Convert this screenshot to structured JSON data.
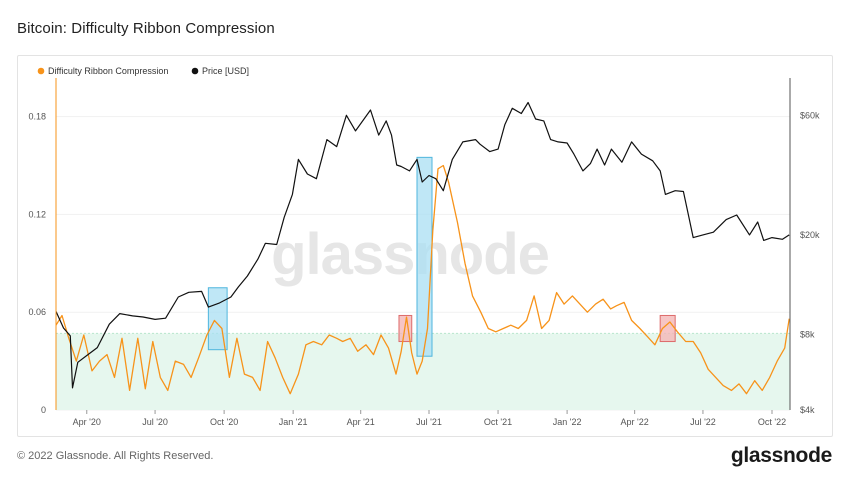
{
  "header": {
    "title": "Bitcoin: Difficulty Ribbon Compression"
  },
  "footer": {
    "copyright": "© 2022 Glassnode. All Rights Reserved.",
    "logo": "glassnode"
  },
  "watermark": "glassnode",
  "colors": {
    "ribbon": "#f7931a",
    "price": "#111111",
    "zone_fill": "#e6f7ee",
    "zone_border": "#b9e6cd",
    "blue_box_fill": "#a9dff3",
    "blue_box_stroke": "#4fb6dd",
    "red_box_fill": "#f4b7b7",
    "red_box_stroke": "#dd6b6b"
  },
  "chart_data": {
    "type": "line",
    "legend": {
      "placement": "top-left",
      "entries": [
        "Difficulty Ribbon Compression",
        "Price [USD]"
      ]
    },
    "x_axis": {
      "range": [
        "2020-02-20",
        "2022-10-25"
      ],
      "ticks": [
        {
          "date": "2020-04-01",
          "label": "Apr '20"
        },
        {
          "date": "2020-07-01",
          "label": "Jul '20"
        },
        {
          "date": "2020-10-01",
          "label": "Oct '20"
        },
        {
          "date": "2021-01-01",
          "label": "Jan '21"
        },
        {
          "date": "2021-04-01",
          "label": "Apr '21"
        },
        {
          "date": "2021-07-01",
          "label": "Jul '21"
        },
        {
          "date": "2021-10-01",
          "label": "Oct '21"
        },
        {
          "date": "2022-01-01",
          "label": "Jan '22"
        },
        {
          "date": "2022-04-01",
          "label": "Apr '22"
        },
        {
          "date": "2022-07-01",
          "label": "Jul '22"
        },
        {
          "date": "2022-10-01",
          "label": "Oct '22"
        }
      ]
    },
    "y_left": {
      "range": [
        0,
        0.2
      ],
      "ticks": [
        {
          "value": 0,
          "label": "0"
        },
        {
          "value": 0.06,
          "label": "0.06"
        },
        {
          "value": 0.12,
          "label": "0.12"
        },
        {
          "value": 0.18,
          "label": "0.18"
        }
      ]
    },
    "y_right": {
      "scale": "log",
      "range": [
        4000,
        80000
      ],
      "ticks": [
        {
          "value": 4000,
          "label": "$4k"
        },
        {
          "value": 8000,
          "label": "$8k"
        },
        {
          "value": 20000,
          "label": "$20k"
        },
        {
          "value": 60000,
          "label": "$60k"
        }
      ]
    },
    "threshold_zone": [
      0,
      0.047
    ],
    "highlights": [
      {
        "kind": "blue",
        "x": [
          "2020-09-10",
          "2020-10-05"
        ],
        "y": [
          0.037,
          0.075
        ]
      },
      {
        "kind": "blue",
        "x": [
          "2021-06-15",
          "2021-07-05"
        ],
        "y": [
          0.033,
          0.155
        ]
      },
      {
        "kind": "red",
        "x": [
          "2021-05-22",
          "2021-06-08"
        ],
        "y": [
          0.042,
          0.058
        ]
      },
      {
        "kind": "red",
        "x": [
          "2022-05-05",
          "2022-05-25"
        ],
        "y": [
          0.042,
          0.058
        ]
      }
    ],
    "series": [
      {
        "name": "Difficulty Ribbon Compression",
        "axis": "left",
        "x": [
          "2020-02-20",
          "2020-02-28",
          "2020-03-08",
          "2020-03-18",
          "2020-03-28",
          "2020-04-08",
          "2020-04-18",
          "2020-04-28",
          "2020-05-08",
          "2020-05-18",
          "2020-05-28",
          "2020-06-08",
          "2020-06-18",
          "2020-06-28",
          "2020-07-08",
          "2020-07-18",
          "2020-07-28",
          "2020-08-08",
          "2020-08-18",
          "2020-08-28",
          "2020-09-08",
          "2020-09-18",
          "2020-09-28",
          "2020-10-08",
          "2020-10-18",
          "2020-10-28",
          "2020-11-08",
          "2020-11-18",
          "2020-11-28",
          "2020-12-08",
          "2020-12-18",
          "2020-12-28",
          "2021-01-08",
          "2021-01-18",
          "2021-01-28",
          "2021-02-08",
          "2021-02-18",
          "2021-02-28",
          "2021-03-08",
          "2021-03-18",
          "2021-03-28",
          "2021-04-08",
          "2021-04-18",
          "2021-04-28",
          "2021-05-08",
          "2021-05-18",
          "2021-05-25",
          "2021-06-01",
          "2021-06-08",
          "2021-06-15",
          "2021-06-22",
          "2021-06-29",
          "2021-07-06",
          "2021-07-13",
          "2021-07-20",
          "2021-07-27",
          "2021-08-08",
          "2021-08-18",
          "2021-08-28",
          "2021-09-08",
          "2021-09-18",
          "2021-09-28",
          "2021-10-08",
          "2021-10-18",
          "2021-10-28",
          "2021-11-08",
          "2021-11-18",
          "2021-11-28",
          "2021-12-08",
          "2021-12-18",
          "2021-12-28",
          "2022-01-08",
          "2022-01-18",
          "2022-01-28",
          "2022-02-08",
          "2022-02-18",
          "2022-02-28",
          "2022-03-08",
          "2022-03-18",
          "2022-03-28",
          "2022-04-08",
          "2022-04-18",
          "2022-04-28",
          "2022-05-08",
          "2022-05-18",
          "2022-05-28",
          "2022-06-08",
          "2022-06-18",
          "2022-06-28",
          "2022-07-08",
          "2022-07-18",
          "2022-07-28",
          "2022-08-08",
          "2022-08-18",
          "2022-08-28",
          "2022-09-08",
          "2022-09-18",
          "2022-09-28",
          "2022-10-08",
          "2022-10-18",
          "2022-10-24"
        ],
        "values": [
          0.052,
          0.058,
          0.044,
          0.03,
          0.046,
          0.024,
          0.03,
          0.034,
          0.02,
          0.044,
          0.012,
          0.044,
          0.013,
          0.042,
          0.02,
          0.012,
          0.03,
          0.028,
          0.02,
          0.032,
          0.046,
          0.055,
          0.05,
          0.02,
          0.044,
          0.022,
          0.02,
          0.012,
          0.042,
          0.032,
          0.02,
          0.01,
          0.022,
          0.04,
          0.042,
          0.04,
          0.046,
          0.044,
          0.042,
          0.044,
          0.036,
          0.04,
          0.034,
          0.046,
          0.038,
          0.022,
          0.036,
          0.057,
          0.035,
          0.022,
          0.03,
          0.05,
          0.11,
          0.148,
          0.15,
          0.14,
          0.115,
          0.09,
          0.07,
          0.06,
          0.05,
          0.048,
          0.05,
          0.052,
          0.05,
          0.055,
          0.07,
          0.05,
          0.055,
          0.072,
          0.065,
          0.07,
          0.065,
          0.06,
          0.065,
          0.068,
          0.062,
          0.064,
          0.066,
          0.055,
          0.05,
          0.045,
          0.04,
          0.05,
          0.054,
          0.048,
          0.042,
          0.042,
          0.035,
          0.025,
          0.02,
          0.015,
          0.012,
          0.016,
          0.01,
          0.018,
          0.012,
          0.02,
          0.03,
          0.038,
          0.056
        ]
      },
      {
        "name": "Price [USD]",
        "axis": "right",
        "x": [
          "2020-02-20",
          "2020-03-01",
          "2020-03-10",
          "2020-03-13",
          "2020-03-20",
          "2020-04-01",
          "2020-04-15",
          "2020-05-01",
          "2020-05-15",
          "2020-06-01",
          "2020-06-15",
          "2020-07-01",
          "2020-07-15",
          "2020-08-01",
          "2020-08-15",
          "2020-09-01",
          "2020-09-10",
          "2020-09-25",
          "2020-10-10",
          "2020-10-20",
          "2020-11-01",
          "2020-11-15",
          "2020-11-25",
          "2020-12-10",
          "2020-12-20",
          "2020-12-31",
          "2021-01-08",
          "2021-01-20",
          "2021-02-01",
          "2021-02-15",
          "2021-02-28",
          "2021-03-13",
          "2021-03-25",
          "2021-04-14",
          "2021-04-25",
          "2021-05-05",
          "2021-05-12",
          "2021-05-19",
          "2021-05-25",
          "2021-06-05",
          "2021-06-15",
          "2021-06-22",
          "2021-07-01",
          "2021-07-10",
          "2021-07-20",
          "2021-08-01",
          "2021-08-15",
          "2021-09-01",
          "2021-09-07",
          "2021-09-20",
          "2021-10-01",
          "2021-10-10",
          "2021-10-20",
          "2021-11-01",
          "2021-11-10",
          "2021-11-20",
          "2021-12-01",
          "2021-12-10",
          "2021-12-20",
          "2022-01-01",
          "2022-01-10",
          "2022-01-22",
          "2022-02-01",
          "2022-02-10",
          "2022-02-20",
          "2022-03-01",
          "2022-03-15",
          "2022-03-28",
          "2022-04-10",
          "2022-04-25",
          "2022-05-05",
          "2022-05-12",
          "2022-05-25",
          "2022-06-05",
          "2022-06-13",
          "2022-06-18",
          "2022-07-01",
          "2022-07-15",
          "2022-08-01",
          "2022-08-15",
          "2022-09-01",
          "2022-09-12",
          "2022-09-20",
          "2022-10-01",
          "2022-10-15",
          "2022-10-24"
        ],
        "values": [
          9900,
          8500,
          7900,
          4900,
          6200,
          6600,
          7100,
          8800,
          9700,
          9500,
          9400,
          9200,
          9300,
          11300,
          11800,
          11900,
          10300,
          10700,
          11300,
          12400,
          13700,
          16000,
          18500,
          18300,
          23500,
          29000,
          40000,
          35000,
          33500,
          48000,
          45000,
          60000,
          52000,
          63000,
          50000,
          57000,
          50000,
          38000,
          37500,
          36000,
          40000,
          32500,
          34500,
          33500,
          30000,
          40000,
          47000,
          48000,
          46000,
          43000,
          44000,
          55000,
          64000,
          61000,
          67500,
          58000,
          57000,
          48000,
          47000,
          46500,
          42000,
          36000,
          38500,
          44000,
          38000,
          44000,
          39000,
          47000,
          42000,
          39500,
          36000,
          29000,
          30000,
          29800,
          23000,
          19500,
          20000,
          20500,
          23000,
          24000,
          20000,
          22500,
          19000,
          19500,
          19200,
          20000
        ]
      }
    ]
  }
}
